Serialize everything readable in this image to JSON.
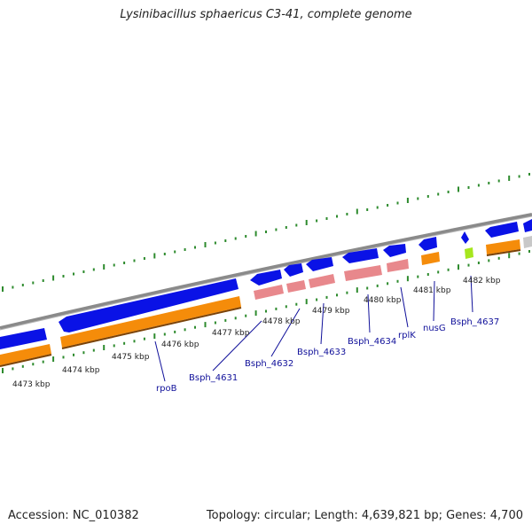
{
  "title": "Lysinibacillus sphaericus C3-41, complete genome",
  "footer": {
    "accession": "Accession: NC_010382",
    "summary": "Topology: circular; Length: 4,639,821 bp; Genes: 4,700"
  },
  "colors": {
    "backbone": "#8a8a8a",
    "cds_blue": "#0a12e6",
    "cds_orange": "#f58c0a",
    "cds_pink": "#e8888c",
    "cds_lime": "#a6e61e",
    "cds_gray": "#c8c8c8",
    "dots": "#2e8b2e",
    "label": "#10109a"
  },
  "scale_ticks": [
    {
      "label": "4473 kbp"
    },
    {
      "label": "4474 kbp"
    },
    {
      "label": "4475 kbp"
    },
    {
      "label": "4476 kbp"
    },
    {
      "label": "4477 kbp"
    },
    {
      "label": "4478 kbp"
    },
    {
      "label": "4479 kbp"
    },
    {
      "label": "4480 kbp"
    },
    {
      "label": "4481 kbp"
    },
    {
      "label": "4482 kbp"
    }
  ],
  "gene_labels": [
    {
      "label": "rpoB"
    },
    {
      "label": "Bsph_4631"
    },
    {
      "label": "Bsph_4632"
    },
    {
      "label": "Bsph_4633"
    },
    {
      "label": "Bsph_4634"
    },
    {
      "label": "rplK"
    },
    {
      "label": "nusG"
    },
    {
      "label": "Bsph_4637"
    }
  ]
}
